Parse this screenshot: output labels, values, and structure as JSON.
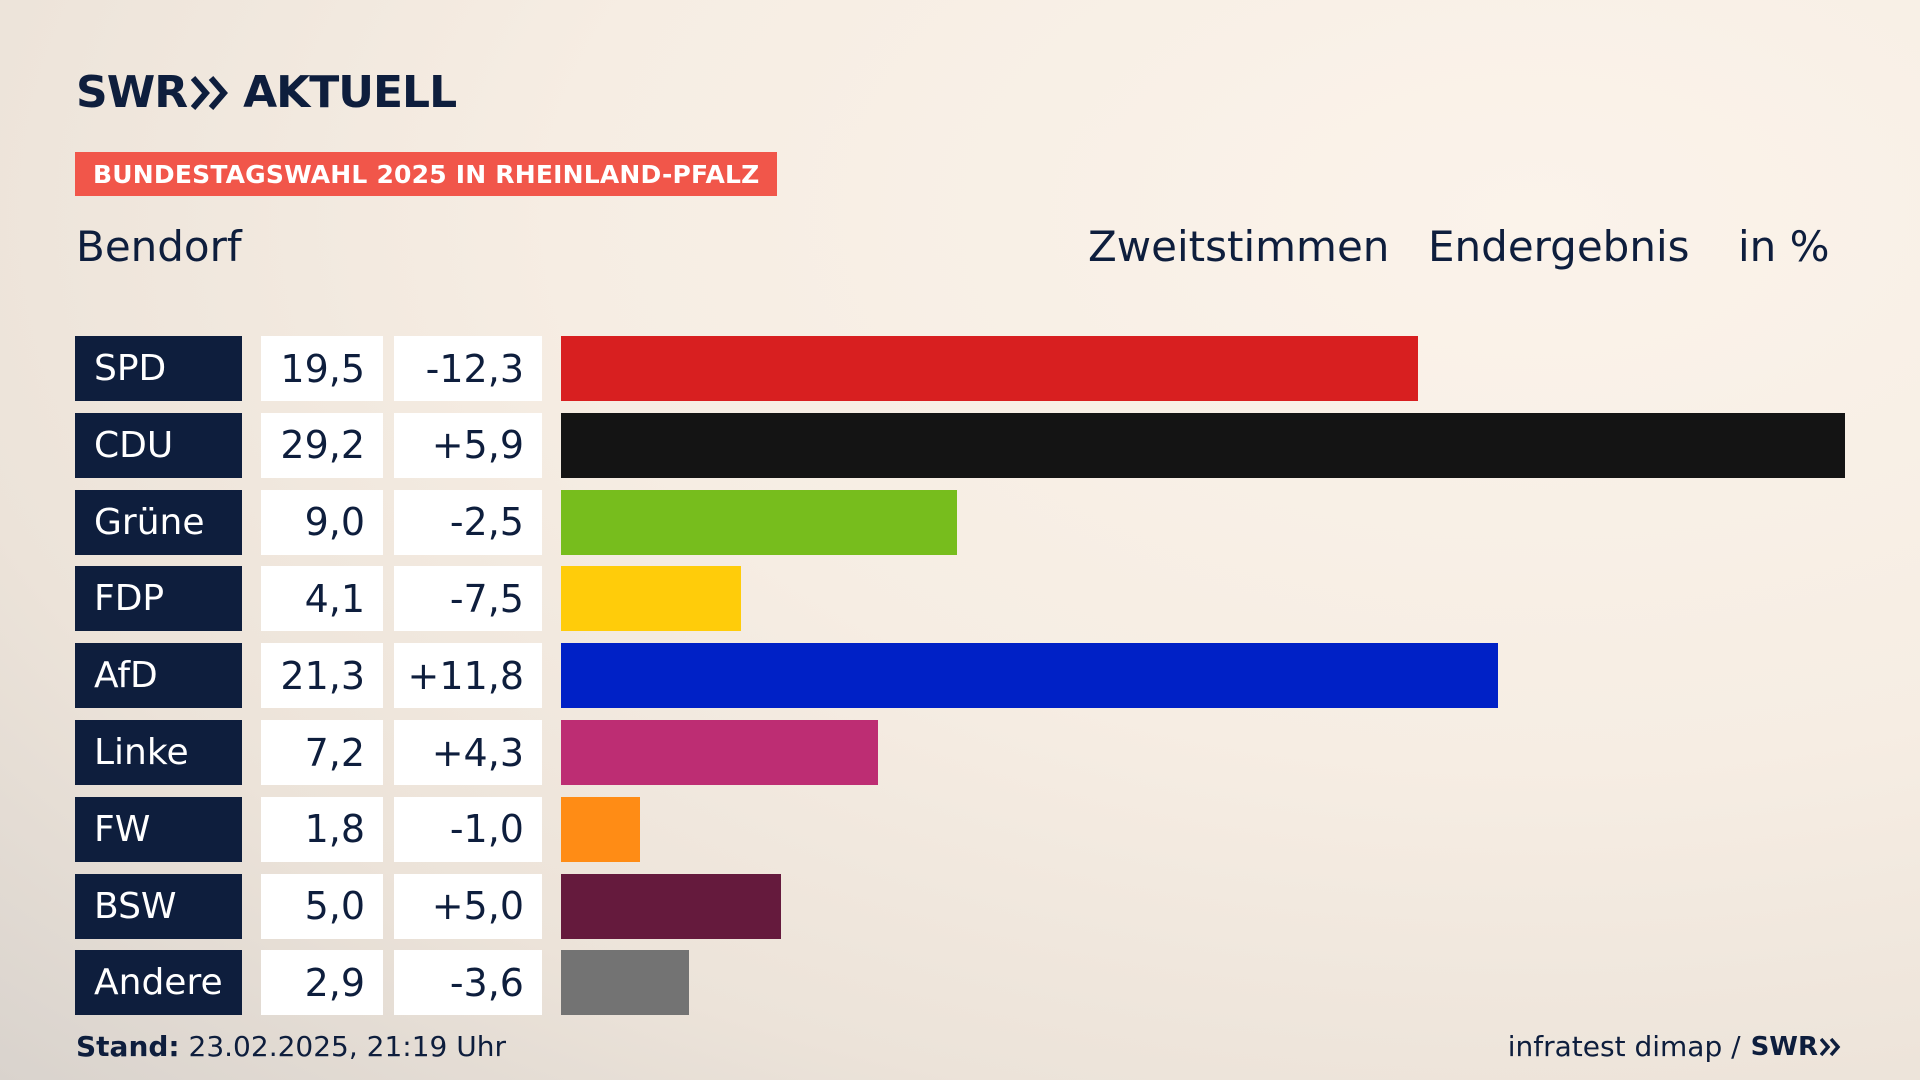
{
  "header": {
    "brand_left": "SWR",
    "brand_right": "AKTUELL",
    "banner": "BUNDESTAGSWAHL 2025 IN RHEINLAND-PFALZ",
    "place": "Bendorf",
    "label_votes": "Zweitstimmen",
    "label_result": "Endergebnis",
    "label_unit": "in %"
  },
  "footer": {
    "stand_label": "Stand:",
    "stand_value": "23.02.2025, 21:19 Uhr",
    "source": "infratest dimap /",
    "source_brand": "SWR"
  },
  "chart_data": {
    "type": "bar",
    "orientation": "horizontal",
    "categories": [
      "SPD",
      "CDU",
      "Grüne",
      "FDP",
      "AfD",
      "Linke",
      "FW",
      "BSW",
      "Andere"
    ],
    "values": [
      19.5,
      29.2,
      9.0,
      4.1,
      21.3,
      7.2,
      1.8,
      5.0,
      2.9
    ],
    "value_labels": [
      "19,5",
      "29,2",
      "9,0",
      "4,1",
      "21,3",
      "7,2",
      "1,8",
      "5,0",
      "2,9"
    ],
    "changes": [
      -12.3,
      5.9,
      -2.5,
      -7.5,
      11.8,
      4.3,
      -1.0,
      5.0,
      -3.6
    ],
    "change_labels": [
      "-12,3",
      "+5,9",
      "-2,5",
      "-7,5",
      "+11,8",
      "+4,3",
      "-1,0",
      "+5,0",
      "-3,6"
    ],
    "colors": [
      "#d81f20",
      "#141414",
      "#77bd1d",
      "#ffcc0a",
      "#0021c6",
      "#bd2d73",
      "#ff8c15",
      "#651a3d",
      "#737373"
    ],
    "xlim": [
      0,
      29.2
    ],
    "grid": false
  }
}
